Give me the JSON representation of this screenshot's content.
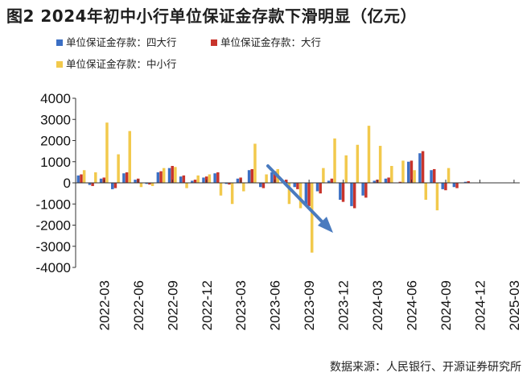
{
  "title": "图2  2024年初中小行单位保证金存款下滑明显（亿元）",
  "source": "数据来源：人民银行、开源证券研究所",
  "colors": {
    "big4": "#3b6fc4",
    "large": "#c8342c",
    "smallmid": "#f2c94c",
    "arrow": "#4a7bbf"
  },
  "chart_data": {
    "type": "bar",
    "title": "图2  2024年初中小行单位保证金存款下滑明显（亿元）",
    "ylim": [
      -4000,
      4000
    ],
    "yticks": [
      4000,
      3000,
      2000,
      1000,
      0,
      -1000,
      -2000,
      -3000,
      -4000
    ],
    "xtick_labels": [
      "2022-03",
      "2022-06",
      "2022-09",
      "2022-12",
      "2023-03",
      "2023-06",
      "2023-09",
      "2023-12",
      "2024-03",
      "2024-06",
      "2024-09",
      "2024-12",
      "2025-03"
    ],
    "legend_position": "top-left",
    "categories": [
      "2022-01",
      "2022-02",
      "2022-03",
      "2022-04",
      "2022-05",
      "2022-06",
      "2022-07",
      "2022-08",
      "2022-09",
      "2022-10",
      "2022-11",
      "2022-12",
      "2023-01",
      "2023-02",
      "2023-03",
      "2023-04",
      "2023-05",
      "2023-06",
      "2023-07",
      "2023-08",
      "2023-09",
      "2023-10",
      "2023-11",
      "2023-12",
      "2024-01",
      "2024-02",
      "2024-03",
      "2024-04",
      "2024-05",
      "2024-06",
      "2024-07",
      "2024-08",
      "2024-09",
      "2024-10",
      "2024-11",
      "2024-12",
      "2025-01",
      "2025-02",
      "2025-03"
    ],
    "series": [
      {
        "name": "单位保证金存款：四大行",
        "color": "#3b6fc4",
        "values": [
          350,
          -100,
          200,
          -300,
          450,
          150,
          -50,
          500,
          700,
          300,
          100,
          250,
          450,
          -50,
          200,
          600,
          -200,
          500,
          100,
          -200,
          -1000,
          -400,
          100,
          -800,
          -1100,
          -600,
          100,
          200,
          0,
          1000,
          1400,
          600,
          -300,
          -200,
          50,
          0,
          0,
          0,
          0
        ]
      },
      {
        "name": "单位保证金存款：大行",
        "color": "#c8342c",
        "values": [
          400,
          -150,
          250,
          -250,
          500,
          200,
          -80,
          550,
          800,
          350,
          150,
          300,
          500,
          -80,
          250,
          650,
          -250,
          550,
          150,
          -300,
          -1100,
          -500,
          200,
          -900,
          -1200,
          -700,
          150,
          250,
          50,
          1050,
          1500,
          650,
          -350,
          -250,
          80,
          0,
          0,
          0,
          0
        ]
      },
      {
        "name": "单位保证金存款：中小行",
        "color": "#f2c94c",
        "values": [
          600,
          500,
          2850,
          1350,
          2450,
          -200,
          -150,
          700,
          750,
          -250,
          350,
          400,
          -600,
          -1000,
          -400,
          1850,
          400,
          650,
          -1000,
          -1200,
          -3300,
          700,
          2100,
          1300,
          1800,
          2700,
          1750,
          800,
          1050,
          600,
          -800,
          -1300,
          700,
          0,
          0,
          0,
          0,
          0,
          0
        ]
      }
    ]
  }
}
